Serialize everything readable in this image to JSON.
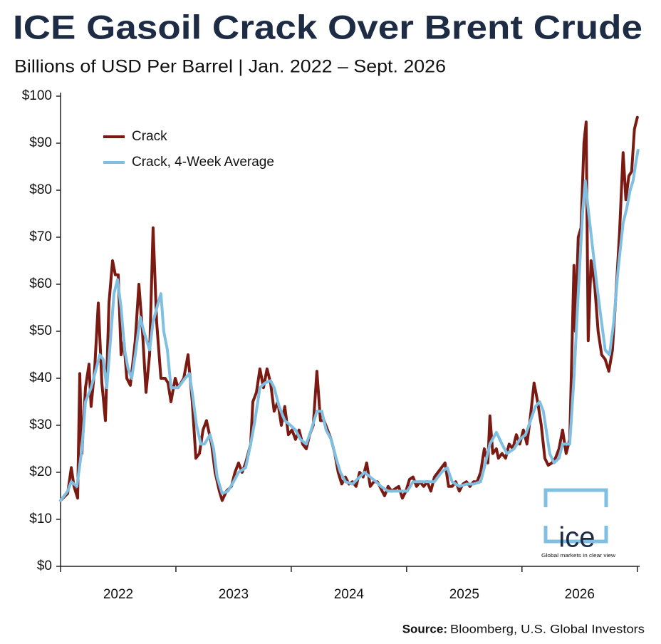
{
  "chart_data": {
    "type": "line",
    "title": "ICE Gasoil Crack Over Brent Crude",
    "subtitle": "Billions of USD Per Barrel | Jan. 2022 – Sept. 2026",
    "source_label": "Source:",
    "source": "Bloomberg, U.S. Global Investors",
    "logo": {
      "text": "ice",
      "tagline": "Global markets in clear view"
    },
    "xlim": [
      2022,
      2027.02
    ],
    "xticks": [
      {
        "value": 2022.5,
        "label": "2022"
      },
      {
        "value": 2023.5,
        "label": "2023"
      },
      {
        "value": 2024.5,
        "label": "2024"
      },
      {
        "value": 2025.5,
        "label": "2025"
      },
      {
        "value": 2026.5,
        "label": "2026"
      }
    ],
    "xtick_marks": [
      2022,
      2023,
      2024,
      2025,
      2026,
      2027
    ],
    "ylim": [
      0,
      100
    ],
    "yticks": [
      {
        "value": 0,
        "label": "$0"
      },
      {
        "value": 10,
        "label": "$10"
      },
      {
        "value": 20,
        "label": "$20"
      },
      {
        "value": 30,
        "label": "$30"
      },
      {
        "value": 40,
        "label": "$40"
      },
      {
        "value": 50,
        "label": "$50"
      },
      {
        "value": 60,
        "label": "$60"
      },
      {
        "value": 70,
        "label": "$70"
      },
      {
        "value": 80,
        "label": "$80"
      },
      {
        "value": 90,
        "label": "$90"
      },
      {
        "value": 100,
        "label": "$100"
      }
    ],
    "grid": false,
    "legend": "upper left",
    "series": [
      {
        "name": "Crack",
        "color": "#7a1a12",
        "x": [
          2022.0,
          2022.062,
          2022.093,
          2022.117,
          2022.148,
          2022.167,
          2022.185,
          2022.216,
          2022.247,
          2022.265,
          2022.296,
          2022.327,
          2022.358,
          2022.389,
          2022.42,
          2022.451,
          2022.475,
          2022.5,
          2022.525,
          2022.549,
          2022.574,
          2022.605,
          2022.648,
          2022.679,
          2022.71,
          2022.741,
          2022.772,
          2022.802,
          2022.833,
          2022.87,
          2022.907,
          2022.932,
          2022.957,
          2022.994,
          2023.019,
          2023.068,
          2023.105,
          2023.142,
          2023.173,
          2023.204,
          2023.235,
          2023.265,
          2023.309,
          2023.34,
          2023.377,
          2023.401,
          2023.438,
          2023.481,
          2023.512,
          2023.543,
          2023.574,
          2023.605,
          2023.648,
          2023.667,
          2023.698,
          2023.728,
          2023.759,
          2023.79,
          2023.821,
          2023.852,
          2023.883,
          2023.914,
          2023.944,
          2023.975,
          2024.006,
          2024.037,
          2024.068,
          2024.099,
          2024.13,
          2024.16,
          2024.191,
          2024.222,
          2024.253,
          2024.284,
          2024.315,
          2024.346,
          2024.377,
          2024.407,
          2024.438,
          2024.469,
          2024.5,
          2024.531,
          2024.562,
          2024.593,
          2024.623,
          2024.654,
          2024.685,
          2024.716,
          2024.747,
          2024.778,
          2024.809,
          2024.84,
          2024.87,
          2024.901,
          2024.932,
          2024.963,
          2024.994,
          2025.025,
          2025.056,
          2025.086,
          2025.117,
          2025.148,
          2025.179,
          2025.21,
          2025.241,
          2025.272,
          2025.302,
          2025.333,
          2025.364,
          2025.395,
          2025.426,
          2025.457,
          2025.488,
          2025.519,
          2025.549,
          2025.58,
          2025.611,
          2025.642,
          2025.673,
          2025.704,
          2025.722,
          2025.747,
          2025.778,
          2025.796,
          2025.827,
          2025.858,
          2025.889,
          2025.92,
          2025.951,
          2025.981,
          2026.012,
          2026.043,
          2026.074,
          2026.105,
          2026.136,
          2026.167,
          2026.198,
          2026.228,
          2026.259,
          2026.29,
          2026.321,
          2026.352,
          2026.383,
          2026.414,
          2026.451,
          2026.463,
          2026.488,
          2026.512,
          2026.537,
          2026.556,
          2026.574,
          2026.599,
          2026.63,
          2026.66,
          2026.691,
          2026.722,
          2026.753,
          2026.784,
          2026.815,
          2026.846,
          2026.877,
          2026.901,
          2026.926,
          2026.951,
          2026.975,
          2027.0
        ],
        "values": [
          14,
          15.5,
          21,
          17,
          14.5,
          41,
          24,
          38,
          43,
          34,
          42,
          56,
          39,
          31,
          56,
          65,
          62,
          62,
          45,
          48,
          40,
          38.5,
          48,
          60,
          50,
          37,
          45,
          72,
          52,
          40,
          40,
          39,
          35,
          40,
          38,
          40,
          45,
          35,
          23,
          24,
          29,
          31,
          26,
          20,
          16,
          14,
          16,
          17,
          20,
          22,
          20,
          22,
          26,
          35,
          37,
          42,
          38,
          42,
          39,
          33,
          35,
          30,
          34,
          28,
          29,
          27,
          29,
          26,
          25,
          28,
          30,
          41.5,
          31,
          31,
          29,
          27,
          24,
          20,
          17.5,
          19,
          17.5,
          18,
          17,
          20,
          19,
          22,
          17,
          18,
          18,
          16.5,
          15,
          17,
          16,
          16.5,
          17,
          14.5,
          16,
          18.5,
          19,
          17,
          18,
          17,
          18,
          16,
          19,
          20,
          21,
          22,
          17,
          17,
          18,
          16,
          17.5,
          18,
          17,
          18,
          18,
          20,
          25,
          22,
          32,
          24,
          25,
          23,
          24,
          23,
          26,
          25,
          28,
          26,
          29,
          26,
          32,
          39,
          35,
          30,
          23,
          21.5,
          22,
          23,
          25,
          29,
          24,
          27,
          64,
          50,
          70,
          72,
          90,
          94.5,
          48,
          65,
          60,
          50,
          45,
          44,
          41.5,
          46,
          58,
          71,
          88,
          78,
          83,
          84,
          93,
          95.5
        ]
      },
      {
        "name": "Crack, 4-Week Average",
        "color": "#7fc0e2",
        "x": [
          2022.0,
          2022.062,
          2022.093,
          2022.142,
          2022.185,
          2022.216,
          2022.265,
          2022.309,
          2022.34,
          2022.37,
          2022.401,
          2022.432,
          2022.463,
          2022.494,
          2022.525,
          2022.556,
          2022.586,
          2022.617,
          2022.648,
          2022.691,
          2022.722,
          2022.772,
          2022.802,
          2022.846,
          2022.87,
          2022.895,
          2022.926,
          2022.957,
          2023.019,
          2023.08,
          2023.117,
          2023.142,
          2023.179,
          2023.216,
          2023.247,
          2023.296,
          2023.327,
          2023.358,
          2023.401,
          2023.451,
          2023.5,
          2023.543,
          2023.605,
          2023.648,
          2023.685,
          2023.728,
          2023.772,
          2023.821,
          2023.852,
          2023.895,
          2023.944,
          2023.994,
          2024.037,
          2024.08,
          2024.13,
          2024.173,
          2024.222,
          2024.265,
          2024.302,
          2024.346,
          2024.389,
          2024.426,
          2024.469,
          2024.531,
          2024.593,
          2024.636,
          2024.685,
          2024.735,
          2024.778,
          2024.84,
          2024.901,
          2024.963,
          2025.006,
          2025.056,
          2025.117,
          2025.179,
          2025.241,
          2025.302,
          2025.352,
          2025.395,
          2025.457,
          2025.519,
          2025.58,
          2025.642,
          2025.673,
          2025.722,
          2025.778,
          2025.827,
          2025.87,
          2025.932,
          2025.981,
          2026.031,
          2026.074,
          2026.117,
          2026.154,
          2026.185,
          2026.216,
          2026.241,
          2026.278,
          2026.321,
          2026.352,
          2026.414,
          2026.451,
          2026.488,
          2026.525,
          2026.549,
          2026.574,
          2026.611,
          2026.648,
          2026.679,
          2026.722,
          2026.759,
          2026.796,
          2026.833,
          2026.877,
          2026.907,
          2026.938,
          2026.963,
          2026.988,
          2027.006
        ],
        "values": [
          14,
          16,
          18,
          17,
          25,
          35,
          38,
          42,
          45,
          44,
          38,
          48,
          58,
          61,
          55,
          46,
          42,
          40,
          45,
          53,
          50,
          46,
          52,
          56,
          58,
          50,
          46,
          38,
          38,
          40,
          41,
          37,
          30,
          26,
          26,
          28,
          25,
          19,
          15.5,
          16,
          18,
          20,
          21,
          26,
          31,
          38,
          39,
          39.5,
          38,
          34,
          31,
          30,
          29,
          27,
          26,
          29,
          33,
          33,
          29,
          27,
          23,
          20,
          18,
          17.5,
          19,
          20,
          19,
          18,
          17,
          16,
          16,
          16,
          16,
          18,
          18,
          18,
          18,
          20,
          21,
          18,
          17,
          17.5,
          17.5,
          18,
          21,
          26,
          28.5,
          26,
          24,
          25,
          27,
          28,
          31,
          34,
          35,
          33,
          28,
          24,
          22,
          23,
          26,
          26,
          40,
          58,
          75,
          82,
          76,
          68,
          60,
          54,
          46,
          45,
          52,
          63,
          73,
          76,
          80,
          82,
          86,
          88.5
        ]
      }
    ]
  }
}
